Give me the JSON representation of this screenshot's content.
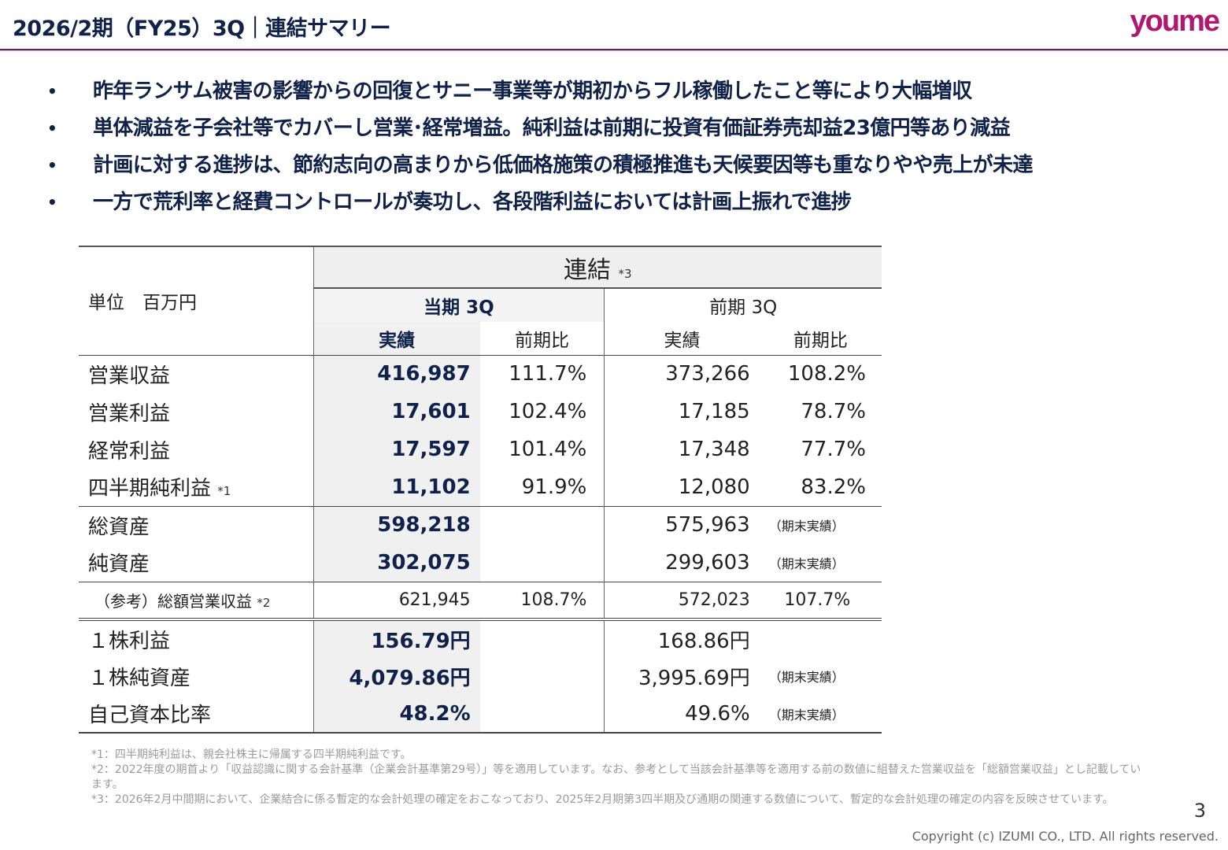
{
  "header": {
    "title": "2026/2期（FY25）3Q｜連結サマリー",
    "logo": "youme"
  },
  "bullets": [
    "昨年ランサム被害の影響からの回復とサニー事業等が期初からフル稼働したこと等により大幅増収",
    "単体減益を子会社等でカバーし営業･経常増益。純利益は前期に投資有価証券売却益23億円等あり減益",
    "計画に対する進捗は、節約志向の高まりから低価格施策の積極推進も天候要因等も重なりやや売上が未達",
    "一方で荒利率と経費コントロールが奏功し、各段階利益においては計画上振れで進捗"
  ],
  "table": {
    "group": "連結",
    "group_note": "*3",
    "unit": "単位　百万円",
    "current": "当期 3Q",
    "previous": "前期 3Q",
    "actual": "実績",
    "yoy": "前期比",
    "rows": [
      {
        "label": "営業収益",
        "note": "",
        "c": "416,987",
        "cy": "111.7%",
        "p": "373,266",
        "py": "108.2%"
      },
      {
        "label": "営業利益",
        "note": "",
        "c": "17,601",
        "cy": "102.4%",
        "p": "17,185",
        "py": "78.7%"
      },
      {
        "label": "経常利益",
        "note": "",
        "c": "17,597",
        "cy": "101.4%",
        "p": "17,348",
        "py": "77.7%"
      },
      {
        "label": "四半期純利益",
        "note": "*1",
        "c": "11,102",
        "cy": "91.9%",
        "p": "12,080",
        "py": "83.2%"
      },
      {
        "label": "総資産",
        "note": "",
        "c": "598,218",
        "cy": "",
        "p": "575,963",
        "py": "（期末実績）"
      },
      {
        "label": "純資産",
        "note": "",
        "c": "302,075",
        "cy": "",
        "p": "299,603",
        "py": "（期末実績）"
      },
      {
        "label": "（参考）総額営業収益",
        "note": "*2",
        "c": "621,945",
        "cy": "108.7%",
        "p": "572,023",
        "py": "107.7%"
      },
      {
        "label": "１株利益",
        "note": "",
        "c": "156.79円",
        "cy": "",
        "p": "168.86円",
        "py": ""
      },
      {
        "label": "１株純資産",
        "note": "",
        "c": "4,079.86円",
        "cy": "",
        "p": "3,995.69円",
        "py": "（期末実績）"
      },
      {
        "label": "自己資本比率",
        "note": "",
        "c": "48.2%",
        "cy": "",
        "p": "49.6%",
        "py": "（期末実績）"
      }
    ]
  },
  "footnotes": [
    "*1：四半期純利益は、親会社株主に帰属する四半期純利益です。",
    "*2：2022年度の期首より「収益認識に関する会計基準（企業会計基準第29号）」等を適用しています。なお、参考として当該会計基準等を適用する前の数値に組替えた営業収益を「総額営業収益」とし記載しています。",
    "*3：2026年2月中間期において、企業結合に係る暫定的な会計処理の確定をおこなっており、2025年2月期第3四半期及び通期の関連する数値について、暫定的な会計処理の確定の内容を反映させています。"
  ],
  "page_number": "3",
  "copyright": "Copyright (c) IZUMI CO., LTD. All rights reserved."
}
